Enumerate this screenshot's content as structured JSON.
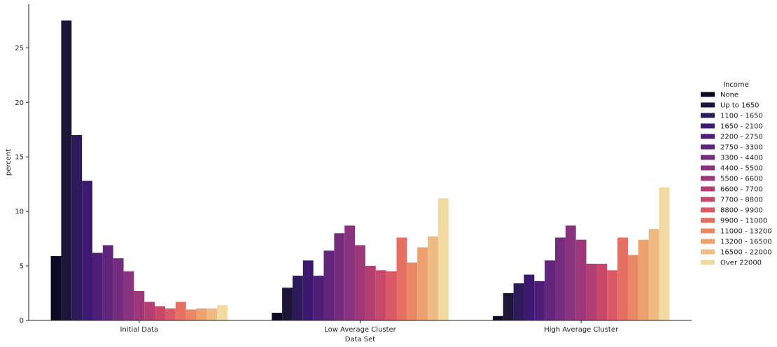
{
  "chart_data": {
    "type": "bar",
    "xlabel": "Data Set",
    "ylabel": "percent",
    "ylim": [
      0,
      29
    ],
    "yticks": [
      0,
      5,
      10,
      15,
      20,
      25
    ],
    "legend_title": "Income",
    "legend_position": "right",
    "grid": false,
    "categories": [
      "Initial Data",
      "Low Average Cluster",
      "High Average Cluster"
    ],
    "series": [
      {
        "name": "None",
        "color": "#0b0924",
        "values": [
          5.9,
          0.7,
          0.4
        ]
      },
      {
        "name": "Up to 1650",
        "color": "#1c1537",
        "values": [
          27.5,
          3.0,
          2.5
        ]
      },
      {
        "name": "1100 - 1650",
        "color": "#2c1a5a",
        "values": [
          17.0,
          4.1,
          3.4
        ]
      },
      {
        "name": "1650 - 2100",
        "color": "#3d1870",
        "values": [
          12.8,
          5.5,
          4.2
        ]
      },
      {
        "name": "2200 - 2750",
        "color": "#4e1d78",
        "values": [
          6.2,
          4.1,
          3.6
        ]
      },
      {
        "name": "2750 - 3300",
        "color": "#61257c",
        "values": [
          6.9,
          6.4,
          5.5
        ]
      },
      {
        "name": "3300 - 4400",
        "color": "#752b7e",
        "values": [
          5.7,
          8.0,
          7.6
        ]
      },
      {
        "name": "4400 - 5500",
        "color": "#89327d",
        "values": [
          4.5,
          8.7,
          8.7
        ]
      },
      {
        "name": "5500 - 6600",
        "color": "#9d3779",
        "values": [
          2.7,
          6.9,
          7.4
        ]
      },
      {
        "name": "6600 - 7700",
        "color": "#b33e71",
        "values": [
          1.7,
          5.0,
          5.2
        ]
      },
      {
        "name": "7700 - 8800",
        "color": "#c8486a",
        "values": [
          1.3,
          4.6,
          5.2
        ]
      },
      {
        "name": "8800 - 9900",
        "color": "#db5866",
        "values": [
          1.1,
          4.5,
          4.6
        ]
      },
      {
        "name": "9900 - 11000",
        "color": "#e46f62",
        "values": [
          1.7,
          7.6,
          7.6
        ]
      },
      {
        "name": "11000 - 13200",
        "color": "#ea8764",
        "values": [
          1.0,
          5.3,
          6.0
        ]
      },
      {
        "name": "13200 - 16500",
        "color": "#eda16f",
        "values": [
          1.1,
          6.7,
          7.4
        ]
      },
      {
        "name": "16500 - 22000",
        "color": "#efbb84",
        "values": [
          1.1,
          7.7,
          8.4
        ]
      },
      {
        "name": "Over 22000",
        "color": "#f3d9a2",
        "values": [
          1.4,
          11.2,
          12.2
        ]
      }
    ]
  }
}
